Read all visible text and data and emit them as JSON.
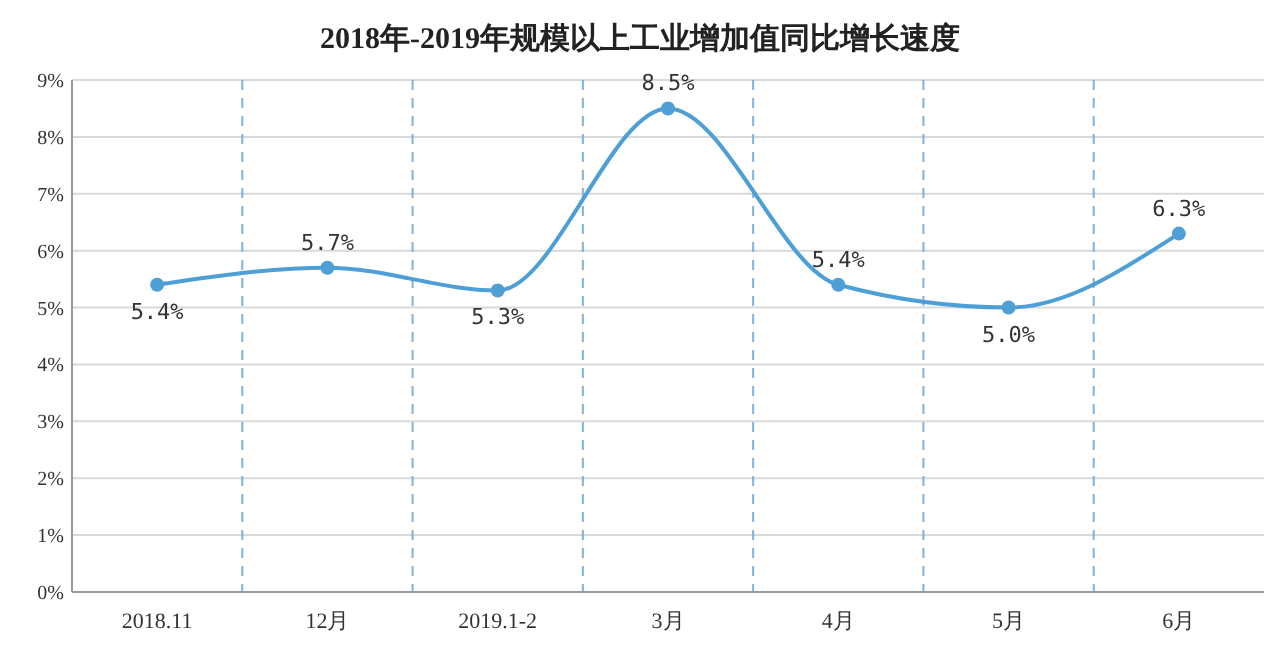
{
  "chart_data": {
    "type": "line",
    "title": "2018年-2019年规模以上工业增加值同比增长速度",
    "categories": [
      "2018.11",
      "12月",
      "2019.1-2",
      "3月",
      "4月",
      "5月",
      "6月"
    ],
    "series": [
      {
        "color": "#4e9fd6",
        "values": [
          5.4,
          5.7,
          5.3,
          8.5,
          5.4,
          5.0,
          6.3
        ]
      }
    ],
    "ylim": [
      0,
      9
    ],
    "yticks": [
      {
        "value": 0,
        "label": "0%"
      },
      {
        "value": 1,
        "label": "1%"
      },
      {
        "value": 2,
        "label": "2%"
      },
      {
        "value": 3,
        "label": "3%"
      },
      {
        "value": 4,
        "label": "4%"
      },
      {
        "value": 5,
        "label": "5%"
      },
      {
        "value": 6,
        "label": "6%"
      },
      {
        "value": 7,
        "label": "7%"
      },
      {
        "value": 8,
        "label": "8%"
      },
      {
        "value": 9,
        "label": "9%"
      }
    ],
    "value_labels": [
      "5.4%",
      "5.7%",
      "5.3%",
      "8.5%",
      "5.4%",
      "5.0%",
      "6.3%"
    ],
    "grid": true,
    "marker": "circle",
    "line_style": "solid"
  }
}
